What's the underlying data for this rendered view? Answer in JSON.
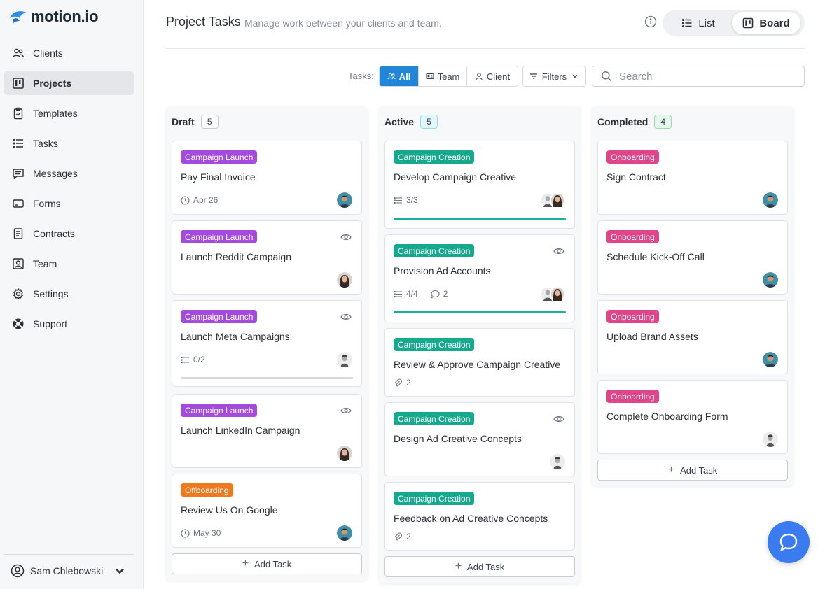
{
  "app": {
    "logo_text": "motion.io"
  },
  "sidebar": {
    "items": [
      {
        "label": "Clients",
        "icon": "users-icon"
      },
      {
        "label": "Projects",
        "icon": "kanban-icon",
        "active": true
      },
      {
        "label": "Templates",
        "icon": "clipboard-icon"
      },
      {
        "label": "Tasks",
        "icon": "list-icon"
      },
      {
        "label": "Messages",
        "icon": "message-icon"
      },
      {
        "label": "Forms",
        "icon": "form-icon"
      },
      {
        "label": "Contracts",
        "icon": "document-icon"
      },
      {
        "label": "Team",
        "icon": "team-icon"
      },
      {
        "label": "Settings",
        "icon": "gear-icon"
      },
      {
        "label": "Support",
        "icon": "lifebuoy-icon"
      }
    ],
    "user": {
      "name": "Sam Chlebowski"
    }
  },
  "header": {
    "title": "Project Tasks",
    "subtitle": "Manage work between your clients and team.",
    "view_list": "List",
    "view_board": "Board",
    "active_view": "Board"
  },
  "toolbar": {
    "tasks_label": "Tasks:",
    "segments": {
      "all": "All",
      "team": "Team",
      "client": "Client"
    },
    "active_segment": "All",
    "filters_label": "Filters",
    "search_placeholder": "Search",
    "search_value": ""
  },
  "columns": [
    {
      "title": "Draft",
      "count": "5",
      "add_label": "Add Task",
      "cards": [
        {
          "tag": "Campaign Launch",
          "tag_color": "#a24bdc",
          "title": "Pay Final Invoice",
          "date": "Apr 26",
          "watch": false
        },
        {
          "tag": "Campaign Launch",
          "tag_color": "#a24bdc",
          "title": "Launch Reddit Campaign",
          "watch": true
        },
        {
          "tag": "Campaign Launch",
          "tag_color": "#a24bdc",
          "title": "Launch Meta Campaigns",
          "checklist": "0/2",
          "progress": 0,
          "watch": true
        },
        {
          "tag": "Campaign Launch",
          "tag_color": "#a24bdc",
          "title": "Launch LinkedIn Campaign",
          "watch": true
        },
        {
          "tag": "Offboarding",
          "tag_color": "#ee7a1d",
          "title": "Review Us On Google",
          "date": "May 30",
          "watch": false
        }
      ]
    },
    {
      "title": "Active",
      "count": "5",
      "add_label": "Add Task",
      "cards": [
        {
          "tag": "Campaign Creation",
          "tag_color": "#17a98d",
          "title": "Develop Campaign Creative",
          "checklist": "3/3",
          "progress": 1,
          "watch": false
        },
        {
          "tag": "Campaign Creation",
          "tag_color": "#17a98d",
          "title": "Provision Ad Accounts",
          "checklist": "4/4",
          "comments": "2",
          "progress": 1,
          "watch": true
        },
        {
          "tag": "Campaign Creation",
          "tag_color": "#17a98d",
          "title": "Review & Approve Campaign Creative",
          "attachments": "2",
          "watch": false
        },
        {
          "tag": "Campaign Creation",
          "tag_color": "#17a98d",
          "title": "Design Ad Creative Concepts",
          "watch": true
        },
        {
          "tag": "Campaign Creation",
          "tag_color": "#17a98d",
          "title": "Feedback on Ad Creative Concepts",
          "attachments": "2",
          "watch": false
        }
      ]
    },
    {
      "title": "Completed",
      "count": "4",
      "add_label": "Add Task",
      "cards": [
        {
          "tag": "Onboarding",
          "tag_color": "#e0458b",
          "title": "Sign Contract"
        },
        {
          "tag": "Onboarding",
          "tag_color": "#e0458b",
          "title": "Schedule Kick-Off Call"
        },
        {
          "tag": "Onboarding",
          "tag_color": "#e0458b",
          "title": "Upload Brand Assets"
        },
        {
          "tag": "Onboarding",
          "tag_color": "#e0458b",
          "title": "Complete Onboarding Form"
        }
      ]
    }
  ]
}
